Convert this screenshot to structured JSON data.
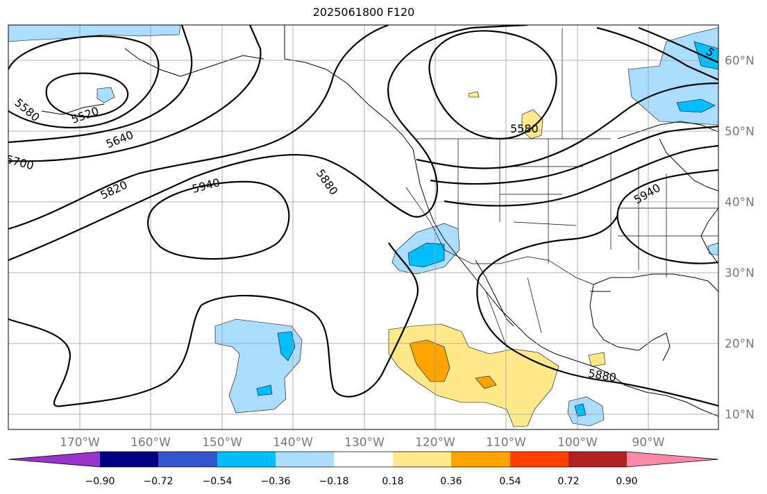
{
  "title": "2025061800 F120",
  "map": {
    "lon_labels": [
      "170°W",
      "160°W",
      "150°W",
      "140°W",
      "130°W",
      "120°W",
      "110°W",
      "100°W",
      "90°W"
    ],
    "lat_labels": [
      "60°N",
      "50°N",
      "40°N",
      "30°N",
      "20°N",
      "10°N"
    ],
    "contour_labels": [
      "5520",
      "5580",
      "5640",
      "5700",
      "5820",
      "5940",
      "5880",
      "5580",
      "5940",
      "5880",
      "5"
    ],
    "contour_color": "#000000",
    "grid": true
  },
  "colorbar": {
    "ticks": [
      "−0.90",
      "−0.72",
      "−0.54",
      "−0.36",
      "−0.18",
      "0.18",
      "0.36",
      "0.54",
      "0.72",
      "0.90"
    ],
    "colors": [
      "#9933cc",
      "#000080",
      "#3355cc",
      "#00bfff",
      "#aaddff",
      "#ffffff",
      "#ffe98a",
      "#ffa500",
      "#ff4000",
      "#b22222",
      "#ff88aa"
    ]
  }
}
